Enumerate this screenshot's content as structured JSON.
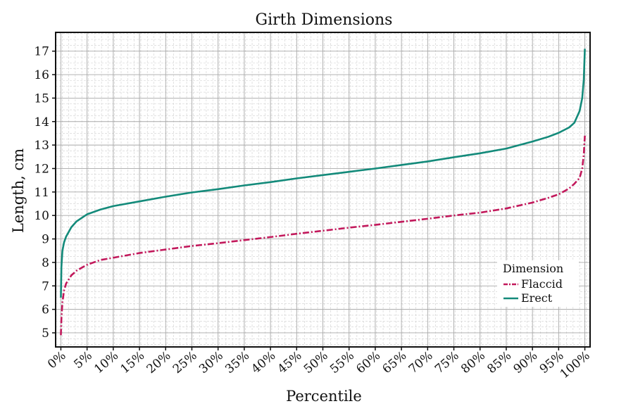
{
  "chart_data": {
    "type": "line",
    "title": "Girth Dimensions",
    "xlabel": "Percentile",
    "ylabel": "Length, cm",
    "xlim": [
      -1,
      101
    ],
    "ylim": [
      4.4,
      17.8
    ],
    "x_ticks": [
      0,
      5,
      10,
      15,
      20,
      25,
      30,
      35,
      40,
      45,
      50,
      55,
      60,
      65,
      70,
      75,
      80,
      85,
      90,
      95,
      100
    ],
    "x_tick_labels": [
      "0%",
      "5%",
      "10%",
      "15%",
      "20%",
      "25%",
      "30%",
      "35%",
      "40%",
      "45%",
      "50%",
      "55%",
      "60%",
      "65%",
      "70%",
      "75%",
      "80%",
      "85%",
      "90%",
      "95%",
      "100%"
    ],
    "y_ticks": [
      5,
      6,
      7,
      8,
      9,
      10,
      11,
      12,
      13,
      14,
      15,
      16,
      17
    ],
    "grid": true,
    "legend": {
      "title": "Dimension",
      "position": "bottom-right"
    },
    "series": [
      {
        "name": "Flaccid",
        "color": "#c2185b",
        "dash": "dashdot",
        "x": [
          0,
          0.1,
          0.3,
          0.6,
          1,
          2,
          3,
          5,
          7.5,
          10,
          15,
          20,
          25,
          30,
          35,
          40,
          45,
          50,
          55,
          60,
          65,
          70,
          75,
          80,
          85,
          90,
          93,
          95,
          97,
          98,
          99,
          99.5,
          99.8,
          100
        ],
        "y": [
          4.9,
          5.6,
          6.3,
          6.8,
          7.1,
          7.45,
          7.65,
          7.9,
          8.1,
          8.2,
          8.4,
          8.55,
          8.7,
          8.82,
          8.95,
          9.08,
          9.22,
          9.35,
          9.48,
          9.6,
          9.73,
          9.86,
          10.0,
          10.12,
          10.3,
          10.55,
          10.75,
          10.9,
          11.15,
          11.35,
          11.6,
          12.0,
          12.6,
          13.4
        ]
      },
      {
        "name": "Erect",
        "color": "#138a7a",
        "dash": "solid",
        "x": [
          0,
          0.1,
          0.3,
          0.6,
          1,
          2,
          3,
          5,
          7.5,
          10,
          15,
          20,
          25,
          30,
          35,
          40,
          45,
          50,
          55,
          60,
          65,
          70,
          75,
          80,
          85,
          90,
          93,
          95,
          97,
          98,
          99,
          99.5,
          99.8,
          100
        ],
        "y": [
          6.5,
          7.8,
          8.5,
          8.85,
          9.1,
          9.5,
          9.75,
          10.05,
          10.25,
          10.4,
          10.6,
          10.8,
          10.98,
          11.12,
          11.28,
          11.42,
          11.58,
          11.72,
          11.86,
          12.0,
          12.15,
          12.3,
          12.48,
          12.65,
          12.85,
          13.15,
          13.35,
          13.52,
          13.75,
          13.95,
          14.45,
          15.0,
          15.8,
          17.1
        ]
      }
    ]
  }
}
